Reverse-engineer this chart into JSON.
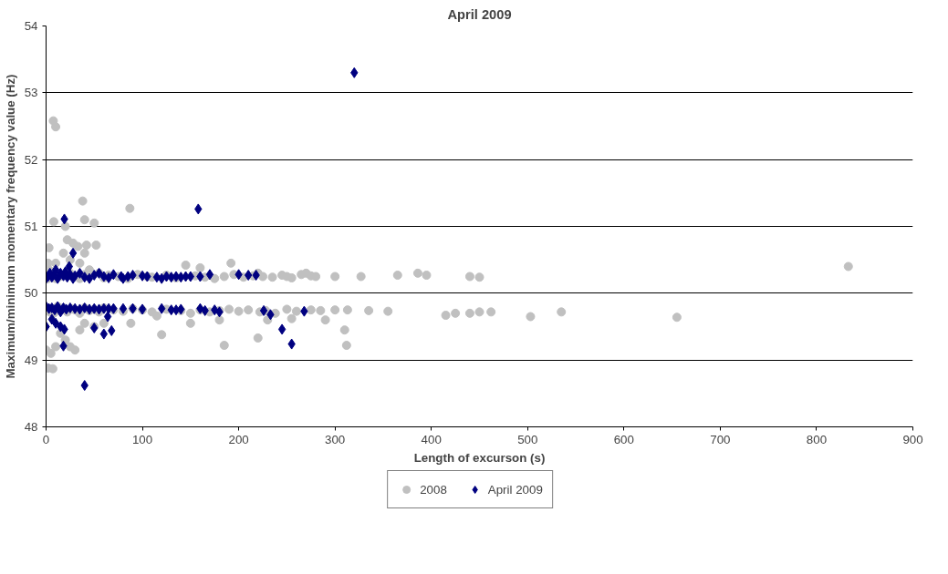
{
  "chart_data": {
    "type": "scatter",
    "title": "April 2009",
    "xlabel": "Length of excurson (s)",
    "ylabel": "Maximum/minimum momentary frequency value (Hz)",
    "xlim": [
      0,
      900
    ],
    "xticks": [
      0,
      100,
      200,
      300,
      400,
      500,
      600,
      700,
      800,
      900
    ],
    "ylim": [
      48,
      54
    ],
    "yticks": [
      48,
      49,
      50,
      51,
      52,
      53,
      54
    ],
    "grid": "y",
    "legend": "bottom",
    "series": [
      {
        "name": "2008",
        "color": "#c0c0c0",
        "marker": "circle",
        "x": [
          7.5,
          10,
          38,
          87,
          40,
          50,
          8,
          20,
          3,
          18,
          22,
          28,
          33,
          42,
          52,
          40,
          10,
          2,
          25,
          35,
          45,
          192,
          160,
          145,
          220,
          2,
          3,
          10,
          14,
          25,
          35,
          40,
          55,
          60,
          65,
          75,
          85,
          95,
          105,
          110,
          125,
          135,
          155,
          165,
          175,
          185,
          195,
          205,
          215,
          225,
          235,
          245,
          250,
          255,
          265,
          270,
          275,
          280,
          300,
          327,
          365,
          386,
          395,
          440,
          450,
          833,
          4,
          8,
          12,
          18,
          22,
          26,
          30,
          35,
          40,
          45,
          50,
          55,
          60,
          70,
          80,
          90,
          100,
          110,
          115,
          125,
          140,
          150,
          160,
          170,
          180,
          190,
          200,
          210,
          222,
          228,
          238,
          250,
          260,
          275,
          285,
          300,
          313,
          335,
          355,
          415,
          425,
          440,
          450,
          462,
          503,
          535,
          655,
          10,
          20,
          25,
          30,
          5,
          2,
          7,
          15,
          35,
          40,
          50,
          60,
          88,
          120,
          185,
          220,
          310,
          312,
          150,
          180,
          290,
          230,
          255,
          0
        ],
        "values": [
          52.58,
          52.49,
          51.38,
          51.27,
          51.1,
          51.05,
          51.07,
          51.0,
          50.68,
          50.6,
          50.8,
          50.75,
          50.7,
          50.72,
          50.72,
          50.6,
          50.45,
          50.45,
          50.5,
          50.45,
          50.35,
          50.45,
          50.38,
          50.42,
          50.3,
          50.22,
          50.35,
          50.22,
          50.25,
          50.3,
          50.22,
          50.28,
          50.3,
          50.23,
          50.27,
          50.25,
          50.22,
          50.28,
          50.25,
          50.24,
          50.27,
          50.23,
          50.26,
          50.24,
          50.22,
          50.25,
          50.28,
          50.24,
          50.26,
          50.25,
          50.24,
          50.27,
          50.25,
          50.23,
          50.28,
          50.3,
          50.26,
          50.25,
          50.25,
          50.25,
          50.27,
          50.3,
          50.27,
          50.25,
          50.24,
          50.4,
          49.72,
          49.7,
          49.8,
          49.78,
          49.72,
          49.77,
          49.75,
          49.7,
          49.78,
          49.74,
          49.76,
          49.72,
          49.78,
          49.75,
          49.73,
          49.77,
          49.75,
          49.72,
          49.66,
          49.76,
          49.74,
          49.7,
          49.75,
          49.72,
          49.74,
          49.76,
          49.73,
          49.75,
          49.72,
          49.74,
          49.7,
          49.76,
          49.73,
          49.75,
          49.74,
          49.75,
          49.75,
          49.74,
          49.73,
          49.67,
          49.7,
          49.7,
          49.72,
          49.72,
          49.65,
          49.72,
          49.64,
          49.2,
          49.3,
          49.2,
          49.15,
          49.1,
          48.88,
          48.87,
          49.4,
          49.45,
          49.55,
          49.5,
          49.55,
          49.55,
          49.38,
          49.22,
          49.33,
          49.45,
          49.22,
          49.55,
          49.6,
          49.6,
          49.6,
          49.62,
          49.15
        ]
      },
      {
        "name": "April 2009",
        "color": "#000080",
        "marker": "diamond",
        "x": [
          320,
          158,
          19,
          28,
          24,
          0,
          2,
          4,
          6,
          8,
          10,
          12,
          15,
          18,
          20,
          22,
          25,
          28,
          30,
          35,
          40,
          45,
          50,
          55,
          60,
          65,
          70,
          78,
          80,
          85,
          90,
          100,
          105,
          115,
          120,
          125,
          130,
          135,
          140,
          145,
          150,
          160,
          170,
          200,
          210,
          218,
          0,
          3,
          6,
          9,
          12,
          15,
          18,
          21,
          25,
          30,
          35,
          40,
          45,
          50,
          55,
          60,
          65,
          70,
          80,
          90,
          100,
          120,
          130,
          135,
          140,
          160,
          165,
          175,
          180,
          226,
          268,
          0,
          6,
          10,
          15,
          19,
          50,
          60,
          64,
          68,
          18,
          233,
          245,
          255,
          40
        ],
        "values": [
          53.3,
          51.26,
          51.11,
          50.6,
          50.4,
          50.22,
          50.25,
          50.3,
          50.24,
          50.28,
          50.35,
          50.22,
          50.3,
          50.26,
          50.32,
          50.24,
          50.28,
          50.22,
          50.26,
          50.3,
          50.24,
          50.22,
          50.27,
          50.3,
          50.25,
          50.23,
          50.28,
          50.25,
          50.22,
          50.25,
          50.27,
          50.26,
          50.25,
          50.24,
          50.22,
          50.25,
          50.24,
          50.25,
          50.24,
          50.25,
          50.25,
          50.25,
          50.28,
          50.28,
          50.27,
          50.27,
          49.8,
          49.77,
          49.78,
          49.75,
          49.8,
          49.72,
          49.78,
          49.76,
          49.78,
          49.77,
          49.76,
          49.78,
          49.76,
          49.77,
          49.76,
          49.77,
          49.77,
          49.77,
          49.77,
          49.77,
          49.76,
          49.77,
          49.75,
          49.75,
          49.76,
          49.77,
          49.74,
          49.75,
          49.72,
          49.74,
          49.73,
          49.5,
          49.61,
          49.55,
          49.5,
          49.46,
          49.48,
          49.39,
          49.65,
          49.44,
          49.21,
          49.68,
          49.46,
          49.24,
          48.62
        ]
      }
    ]
  }
}
